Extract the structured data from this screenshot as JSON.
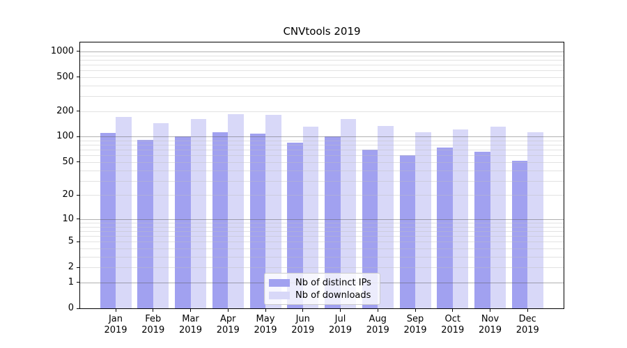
{
  "chart_data": {
    "type": "bar",
    "title": "CNVtools 2019",
    "categories": [
      "Jan 2019",
      "Feb 2019",
      "Mar 2019",
      "Apr 2019",
      "May 2019",
      "Jun 2019",
      "Jul 2019",
      "Aug 2019",
      "Sep 2019",
      "Oct 2019",
      "Nov 2019",
      "Dec 2019"
    ],
    "month_labels": [
      "Jan",
      "Feb",
      "Mar",
      "Apr",
      "May",
      "Jun",
      "Jul",
      "Aug",
      "Sep",
      "Oct",
      "Nov",
      "Dec"
    ],
    "year_label": "2019",
    "series": [
      {
        "name": "Nb of distinct IPs",
        "color": "#a1a1f0",
        "values": [
          110,
          92,
          101,
          112,
          108,
          85,
          100,
          70,
          61,
          74,
          67,
          52
        ]
      },
      {
        "name": "Nb of downloads",
        "color": "#d8d8f8",
        "values": [
          170,
          145,
          162,
          185,
          182,
          131,
          162,
          134,
          113,
          121,
          132,
          112
        ]
      }
    ],
    "xlabel": "",
    "ylabel": "",
    "yscale": "log1p",
    "y_ticks": [
      0,
      1,
      2,
      5,
      10,
      20,
      50,
      100,
      200,
      500,
      1000
    ],
    "y_minor_ticks": [
      2,
      3,
      4,
      5,
      6,
      7,
      8,
      9,
      20,
      30,
      40,
      50,
      60,
      70,
      80,
      90,
      200,
      300,
      400,
      500,
      600,
      700,
      800,
      900
    ],
    "ylim": [
      0,
      1300
    ],
    "grid": true,
    "legend_position": "lower-center",
    "colors": {
      "distinct_ips_bar": "#a1a1f0",
      "downloads_bar": "#d8d8f8",
      "major_grid": "#b0b0b0",
      "minor_grid": "#e2e2e2",
      "spine": "#000000",
      "text": "#000000",
      "legend_border": "#cccccc"
    }
  }
}
